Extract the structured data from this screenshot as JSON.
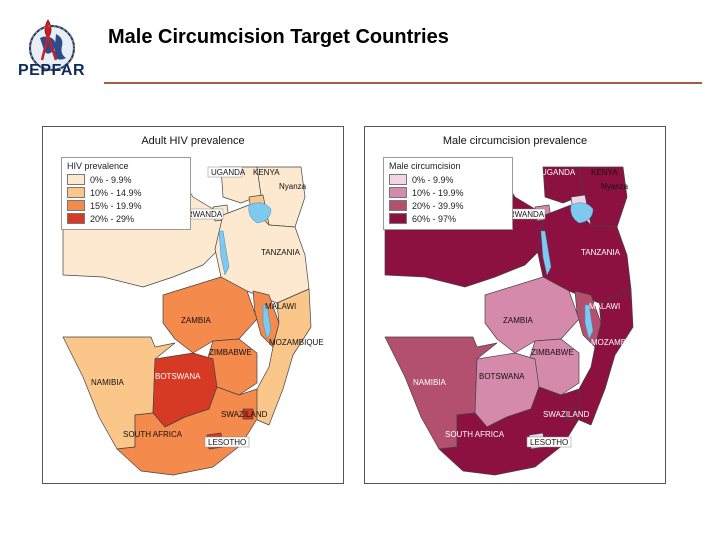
{
  "header": {
    "logo_text": "PEPFAR",
    "title": "Male Circumcision Target Countries"
  },
  "colors": {
    "rule": "#a85a4a",
    "hiv": [
      "#fde9cf",
      "#fbc689",
      "#f48a4b",
      "#d73a24"
    ],
    "mc": [
      "#f3d4e6",
      "#d68aab",
      "#b4506f",
      "#8c1040"
    ],
    "lake": "#7fc9ef"
  },
  "maps": [
    {
      "title": "Adult HIV prevalence",
      "legend_title": "HIV prevalence",
      "legend": [
        "0% - 9.9%",
        "10% - 14.9%",
        "15% - 19.9%",
        "20% - 29%"
      ],
      "labels": {
        "uganda": "UGANDA",
        "kenya": "KENYA",
        "nyanza": "Nyanza",
        "rwanda": "RWANDA",
        "tanzania": "TANZANIA",
        "malawi": "MALAWI",
        "zambia": "ZAMBIA",
        "mozambique": "MOZAMBIQUE",
        "zimbabwe": "ZIMBABWE",
        "namibia": "NAMIBIA",
        "botswana": "BOTSWANA",
        "swaziland": "SWAZILAND",
        "south_africa": "SOUTH AFRICA",
        "lesotho": "LESOTHO"
      },
      "classes": {
        "uganda": 0,
        "kenya": 0,
        "rwanda": 0,
        "tanzania": 0,
        "drc": 0,
        "malawi": 2,
        "zambia": 2,
        "mozambique": 1,
        "zimbabwe": 2,
        "namibia": 1,
        "botswana": 3,
        "swaziland": 3,
        "south_africa": 2,
        "lesotho": 3,
        "nyanza": 1
      }
    },
    {
      "title": "Male circumcision prevalence",
      "legend_title": "Male circumcision",
      "legend": [
        "0% - 9.9%",
        "10% - 19.9%",
        "20% - 39.9%",
        "60% - 97%"
      ],
      "labels": {
        "uganda": "UGANDA",
        "kenya": "KENYA",
        "nyanza": "Nyanza",
        "rwanda": "RWANDA",
        "tanzania": "TANZANIA",
        "malawi": "MALAWI",
        "zambia": "ZAMBIA",
        "mozambique": "MOZAMBIQUE",
        "zimbabwe": "ZIMBABWE",
        "namibia": "NAMIBIA",
        "botswana": "BOTSWANA",
        "swaziland": "SWAZILAND",
        "south_africa": "SOUTH AFRICA",
        "lesotho": "LESOTHO"
      },
      "classes": {
        "uganda": 3,
        "kenya": 3,
        "rwanda": 1,
        "tanzania": 3,
        "drc": 3,
        "malawi": 2,
        "zambia": 1,
        "mozambique": 3,
        "zimbabwe": 1,
        "namibia": 2,
        "botswana": 1,
        "swaziland": 3,
        "south_africa": 3,
        "lesotho": 0,
        "nyanza": 0
      }
    }
  ]
}
